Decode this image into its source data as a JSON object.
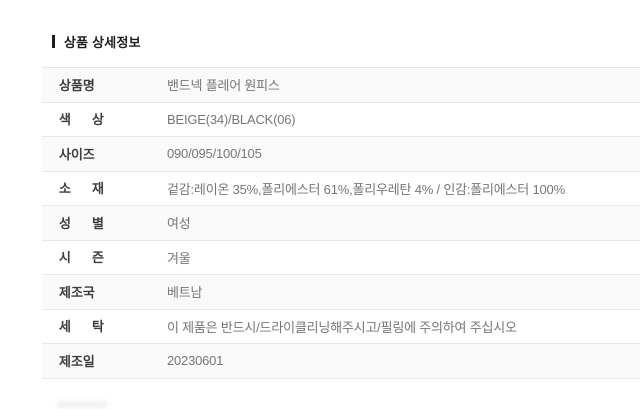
{
  "header": {
    "title": "상품 상세정보"
  },
  "table": {
    "rows": [
      {
        "label": "상품명",
        "value": "밴드넥 플레어 원피스"
      },
      {
        "label": "색 상",
        "value": "BEIGE(34)/BLACK(06)"
      },
      {
        "label": "사이즈",
        "value": "090/095/100/105"
      },
      {
        "label": "소 재",
        "value": "겉감:레이온 35%,폴리에스터 61%,폴리우레탄 4% / 인감:폴리에스터 100%"
      },
      {
        "label": "성 별",
        "value": "여성"
      },
      {
        "label": "시 즌",
        "value": "겨울"
      },
      {
        "label": "제조국",
        "value": "베트남"
      },
      {
        "label": "세 탁",
        "value": "이 제품은 반드시/드라이클리닝해주시고/필링에 주의하여 주십시오"
      },
      {
        "label": "제조일",
        "value": "20230601"
      }
    ]
  },
  "colors": {
    "title_text": "#1e1e1e",
    "label_text": "#3d3d3d",
    "value_text": "#767676",
    "divider": "#e8e8e8",
    "row_alt_bg": "#fafafa",
    "background": "#ffffff"
  }
}
